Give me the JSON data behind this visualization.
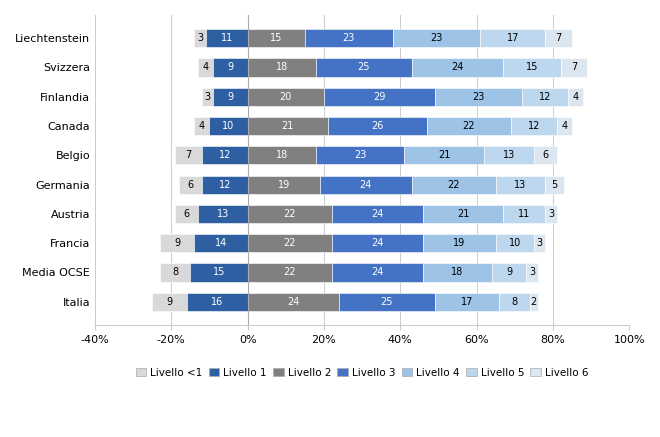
{
  "countries": [
    "Liechtenstein",
    "Svizzera",
    "Finlandia",
    "Canada",
    "Belgio",
    "Germania",
    "Austria",
    "Francia",
    "Media OCSE",
    "Italia"
  ],
  "levels": [
    "Livello <1",
    "Livello 1",
    "Livello 2",
    "Livello 3",
    "Livello 4",
    "Livello 5",
    "Livello 6"
  ],
  "colors": [
    "#d9d9d9",
    "#2e5fa3",
    "#808080",
    "#4472c4",
    "#9dc3e6",
    "#bdd7ee",
    "#dce6f1"
  ],
  "data": [
    [
      3,
      11,
      15,
      23,
      23,
      17,
      7
    ],
    [
      4,
      9,
      18,
      25,
      24,
      15,
      7
    ],
    [
      3,
      9,
      20,
      29,
      23,
      12,
      4
    ],
    [
      4,
      10,
      21,
      26,
      22,
      12,
      4
    ],
    [
      7,
      12,
      18,
      23,
      21,
      13,
      6
    ],
    [
      6,
      12,
      19,
      24,
      22,
      13,
      5
    ],
    [
      6,
      13,
      22,
      24,
      21,
      11,
      3
    ],
    [
      9,
      14,
      22,
      24,
      19,
      10,
      3
    ],
    [
      8,
      15,
      22,
      24,
      18,
      9,
      3
    ],
    [
      9,
      16,
      24,
      25,
      17,
      8,
      2
    ]
  ],
  "xlim": [
    -40,
    100
  ],
  "xticks": [
    -40,
    -20,
    0,
    20,
    40,
    60,
    80,
    100
  ],
  "xtick_labels": [
    "-40%",
    "-20%",
    "0%",
    "20%",
    "40%",
    "60%",
    "80%",
    "100%"
  ],
  "figsize": [
    6.6,
    4.37
  ],
  "dpi": 100,
  "background_color": "#ffffff",
  "bar_height": 0.62,
  "text_fontsize": 7,
  "label_fontsize": 8,
  "legend_fontsize": 7.5
}
